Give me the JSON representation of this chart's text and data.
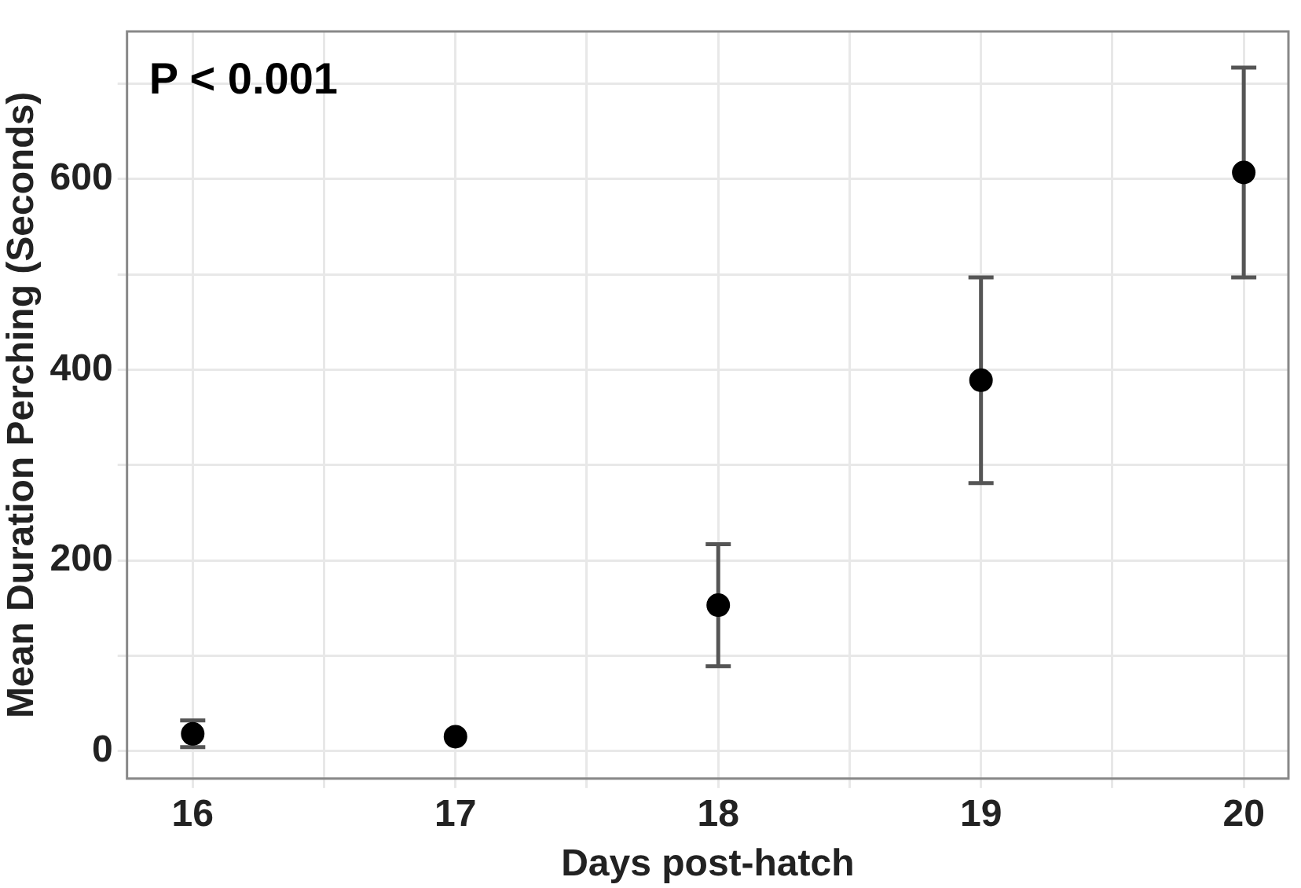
{
  "chart_data": {
    "type": "scatter",
    "xlabel": "Days post-hatch",
    "ylabel": "Mean Duration Perching (Seconds)",
    "annotations": [
      "P < 0.001"
    ],
    "x": [
      16,
      17,
      18,
      19,
      20
    ],
    "series": [
      {
        "color": "#000000",
        "values": [
          18,
          15,
          153,
          389,
          607
        ],
        "errors": [
          14,
          null,
          64,
          108,
          110
        ]
      }
    ],
    "xlim": [
      15.75,
      20.17
    ],
    "xticks": [
      16,
      {
        "value": 16.5,
        "label": null
      },
      17,
      {
        "value": 17.5,
        "label": null
      },
      18,
      {
        "value": 18.5,
        "label": null
      },
      19,
      {
        "value": 19.5,
        "label": null
      },
      20
    ],
    "ylim": [
      -29,
      755
    ],
    "yticks": [
      0,
      {
        "value": 100,
        "label": null
      },
      200,
      {
        "value": 300,
        "label": null
      },
      400,
      {
        "value": 500,
        "label": null
      },
      600,
      {
        "value": 700,
        "label": null
      }
    ],
    "grid": true,
    "legend": false,
    "marker": "circle"
  }
}
